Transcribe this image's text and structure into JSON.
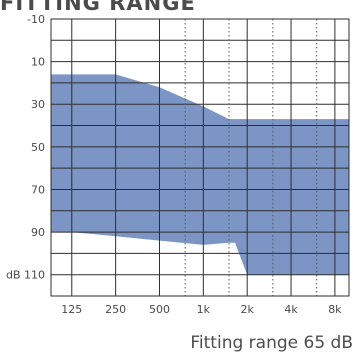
{
  "heading": "FITTING RANGE",
  "caption": "Fitting range 65 dB",
  "chart_data": {
    "type": "area",
    "title": "FITTING RANGE",
    "xlabel": "",
    "ylabel": "",
    "x_scale": "log",
    "x_ticks": [
      125,
      250,
      500,
      1000,
      2000,
      4000,
      8000
    ],
    "x_tick_labels": [
      "125",
      "250",
      "500",
      "1k",
      "2k",
      "4k",
      "8k"
    ],
    "x_minor_ticks": [
      750,
      1500,
      3000,
      6000
    ],
    "xlim": [
      90,
      10000
    ],
    "y_inverted": true,
    "ylim": [
      -10,
      120
    ],
    "y_ticks": [
      -10,
      10,
      30,
      50,
      70,
      90,
      110
    ],
    "y_tick_labels": [
      "-10",
      "10",
      "30",
      "50",
      "70",
      "90",
      "dB 110"
    ],
    "grid": true,
    "fill_color": "#7d95c4",
    "series": [
      {
        "name": "",
        "upper": [
          {
            "x": 90,
            "y": 16
          },
          {
            "x": 250,
            "y": 16
          },
          {
            "x": 500,
            "y": 22
          },
          {
            "x": 1000,
            "y": 31
          },
          {
            "x": 1500,
            "y": 37
          },
          {
            "x": 10000,
            "y": 37
          }
        ],
        "lower": [
          {
            "x": 90,
            "y": 90
          },
          {
            "x": 125,
            "y": 90
          },
          {
            "x": 250,
            "y": 92
          },
          {
            "x": 500,
            "y": 94
          },
          {
            "x": 1000,
            "y": 96
          },
          {
            "x": 1500,
            "y": 95
          },
          {
            "x": 1650,
            "y": 95
          },
          {
            "x": 2000,
            "y": 110
          },
          {
            "x": 10000,
            "y": 110
          }
        ]
      }
    ]
  }
}
